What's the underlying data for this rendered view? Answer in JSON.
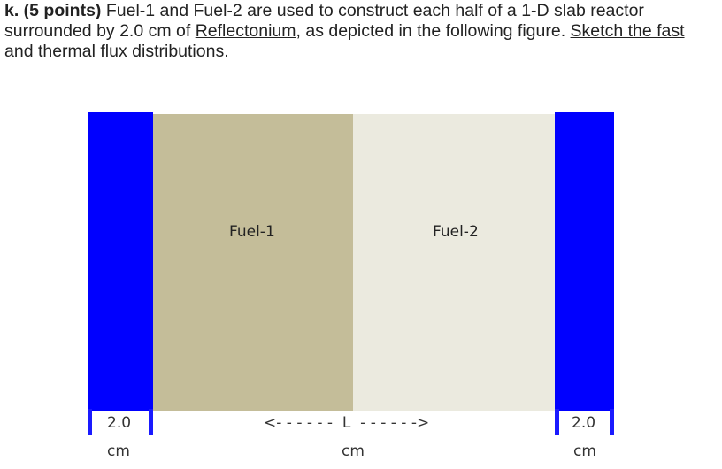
{
  "question": {
    "label": "k. (5 points)",
    "text_1": " Fuel-1 and Fuel-2 are used to construct each half of a 1-D slab reactor surrounded by 2.0 cm of ",
    "reflector_word": "Reflectonium",
    "text_2": ", as depicted in the following figure. ",
    "task": "Sketch the fast and thermal flux distributions",
    "text_3": "."
  },
  "figure": {
    "regions": [
      {
        "name": "left-reflector",
        "color": "#0000ff"
      },
      {
        "name": "fuel-1",
        "label": "Fuel-1",
        "color": "#c4bd99"
      },
      {
        "name": "fuel-2",
        "label": "Fuel-2",
        "color": "#ebeadf"
      },
      {
        "name": "right-reflector",
        "color": "#0000ff"
      }
    ],
    "dimensions": {
      "left_value": "2.0",
      "left_unit": "cm",
      "middle_arrow": "<- - - - - -  L  - - - - - ->",
      "middle_unit": "cm",
      "right_value": "2.0",
      "right_unit": "cm"
    }
  }
}
